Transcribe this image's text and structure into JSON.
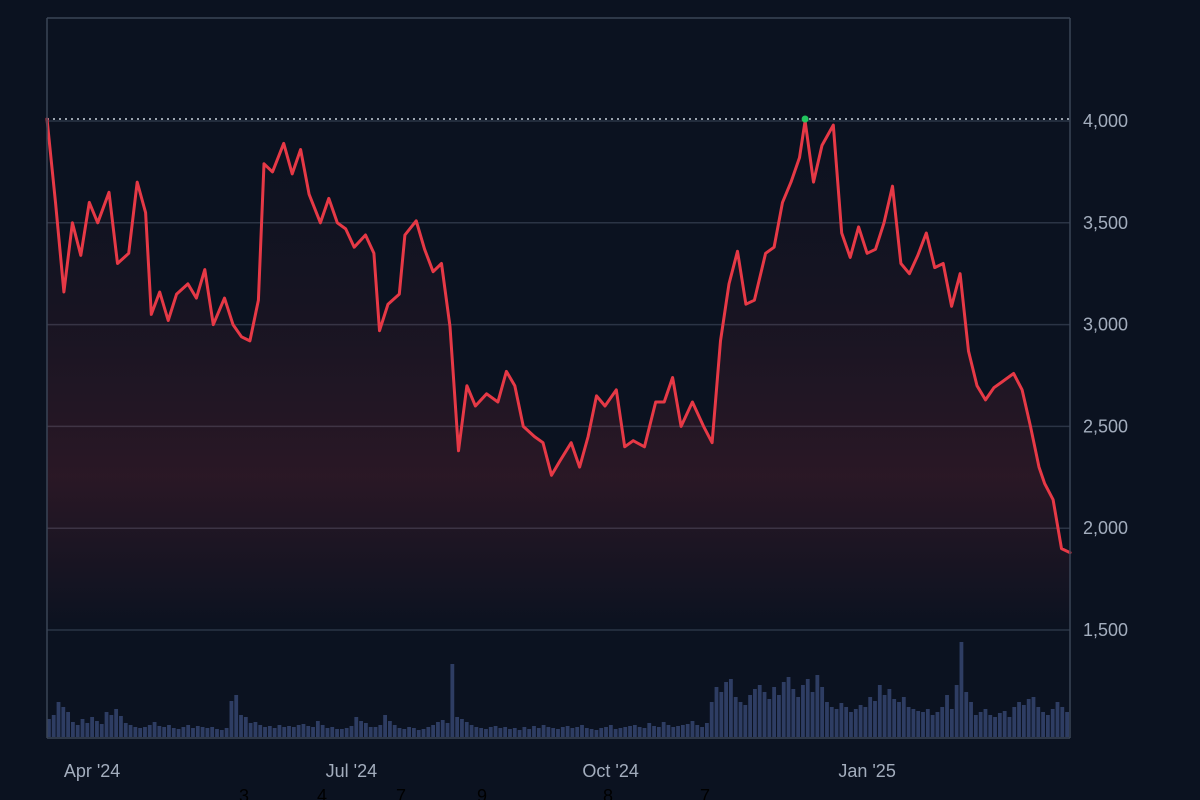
{
  "chart_data": {
    "type": "line",
    "title": "",
    "xlabel": "",
    "ylabel": "",
    "ylim": [
      1000,
      4500
    ],
    "y_ticks": [
      1500,
      2000,
      2500,
      3000,
      3500,
      4000
    ],
    "y_tick_labels": [
      "1,500",
      "2,000",
      "2,500",
      "3,000",
      "3,500",
      "4,000"
    ],
    "x_ticks": [
      "2024-03-28",
      "2024-06-28",
      "2024-09-28",
      "2024-12-28"
    ],
    "x_tick_labels": [
      "Apr '24",
      "Jul '24",
      "Oct '24",
      "Jan '25"
    ],
    "x_range": [
      "2024-03-12",
      "2025-03-10"
    ],
    "grid": true,
    "legend": "none",
    "reference_line": {
      "value": 4010,
      "style": "dotted"
    },
    "extra_labels": [
      "3",
      "4",
      "7",
      "9",
      "8",
      "7"
    ],
    "colors": {
      "price_line": "#e63946",
      "volume": "#2e3d63",
      "grid": "#2b3445",
      "background": "#0b1220",
      "high_marker": "#22c55e"
    },
    "series": [
      {
        "kind": "price",
        "points": [
          [
            "2024-03-12",
            4010
          ],
          [
            "2024-03-15",
            3600
          ],
          [
            "2024-03-18",
            3160
          ],
          [
            "2024-03-21",
            3500
          ],
          [
            "2024-03-24",
            3340
          ],
          [
            "2024-03-27",
            3600
          ],
          [
            "2024-03-30",
            3500
          ],
          [
            "2024-04-03",
            3650
          ],
          [
            "2024-04-06",
            3300
          ],
          [
            "2024-04-10",
            3350
          ],
          [
            "2024-04-13",
            3700
          ],
          [
            "2024-04-16",
            3550
          ],
          [
            "2024-04-18",
            3050
          ],
          [
            "2024-04-21",
            3160
          ],
          [
            "2024-04-24",
            3020
          ],
          [
            "2024-04-27",
            3150
          ],
          [
            "2024-05-01",
            3200
          ],
          [
            "2024-05-04",
            3130
          ],
          [
            "2024-05-07",
            3270
          ],
          [
            "2024-05-10",
            3000
          ],
          [
            "2024-05-14",
            3130
          ],
          [
            "2024-05-17",
            3000
          ],
          [
            "2024-05-20",
            2940
          ],
          [
            "2024-05-23",
            2920
          ],
          [
            "2024-05-26",
            3120
          ],
          [
            "2024-05-28",
            3790
          ],
          [
            "2024-05-31",
            3750
          ],
          [
            "2024-06-04",
            3890
          ],
          [
            "2024-06-07",
            3740
          ],
          [
            "2024-06-10",
            3860
          ],
          [
            "2024-06-13",
            3640
          ],
          [
            "2024-06-17",
            3500
          ],
          [
            "2024-06-20",
            3620
          ],
          [
            "2024-06-23",
            3500
          ],
          [
            "2024-06-26",
            3470
          ],
          [
            "2024-06-29",
            3380
          ],
          [
            "2024-07-03",
            3440
          ],
          [
            "2024-07-06",
            3350
          ],
          [
            "2024-07-08",
            2970
          ],
          [
            "2024-07-11",
            3100
          ],
          [
            "2024-07-15",
            3150
          ],
          [
            "2024-07-17",
            3440
          ],
          [
            "2024-07-21",
            3510
          ],
          [
            "2024-07-24",
            3370
          ],
          [
            "2024-07-27",
            3260
          ],
          [
            "2024-07-30",
            3300
          ],
          [
            "2024-08-02",
            2990
          ],
          [
            "2024-08-05",
            2380
          ],
          [
            "2024-08-08",
            2700
          ],
          [
            "2024-08-11",
            2600
          ],
          [
            "2024-08-15",
            2660
          ],
          [
            "2024-08-19",
            2620
          ],
          [
            "2024-08-22",
            2770
          ],
          [
            "2024-08-25",
            2700
          ],
          [
            "2024-08-28",
            2500
          ],
          [
            "2024-09-01",
            2450
          ],
          [
            "2024-09-04",
            2420
          ],
          [
            "2024-09-07",
            2260
          ],
          [
            "2024-09-10",
            2330
          ],
          [
            "2024-09-14",
            2420
          ],
          [
            "2024-09-17",
            2300
          ],
          [
            "2024-09-20",
            2450
          ],
          [
            "2024-09-23",
            2650
          ],
          [
            "2024-09-26",
            2600
          ],
          [
            "2024-09-30",
            2680
          ],
          [
            "2024-10-03",
            2400
          ],
          [
            "2024-10-06",
            2430
          ],
          [
            "2024-10-10",
            2400
          ],
          [
            "2024-10-14",
            2620
          ],
          [
            "2024-10-17",
            2620
          ],
          [
            "2024-10-20",
            2740
          ],
          [
            "2024-10-23",
            2500
          ],
          [
            "2024-10-27",
            2620
          ],
          [
            "2024-10-31",
            2500
          ],
          [
            "2024-11-03",
            2420
          ],
          [
            "2024-11-06",
            2920
          ],
          [
            "2024-11-09",
            3200
          ],
          [
            "2024-11-12",
            3360
          ],
          [
            "2024-11-15",
            3100
          ],
          [
            "2024-11-18",
            3120
          ],
          [
            "2024-11-22",
            3350
          ],
          [
            "2024-11-25",
            3380
          ],
          [
            "2024-11-28",
            3600
          ],
          [
            "2024-12-01",
            3700
          ],
          [
            "2024-12-04",
            3820
          ],
          [
            "2024-12-06",
            4000
          ],
          [
            "2024-12-09",
            3700
          ],
          [
            "2024-12-12",
            3880
          ],
          [
            "2024-12-16",
            3980
          ],
          [
            "2024-12-19",
            3450
          ],
          [
            "2024-12-22",
            3330
          ],
          [
            "2024-12-25",
            3480
          ],
          [
            "2024-12-28",
            3350
          ],
          [
            "2024-12-31",
            3370
          ],
          [
            "2025-01-03",
            3500
          ],
          [
            "2025-01-06",
            3680
          ],
          [
            "2025-01-09",
            3300
          ],
          [
            "2025-01-12",
            3250
          ],
          [
            "2025-01-15",
            3340
          ],
          [
            "2025-01-18",
            3450
          ],
          [
            "2025-01-21",
            3280
          ],
          [
            "2025-01-24",
            3300
          ],
          [
            "2025-01-27",
            3090
          ],
          [
            "2025-01-30",
            3250
          ],
          [
            "2025-02-02",
            2870
          ],
          [
            "2025-02-05",
            2700
          ],
          [
            "2025-02-08",
            2630
          ],
          [
            "2025-02-11",
            2690
          ],
          [
            "2025-02-14",
            2720
          ],
          [
            "2025-02-18",
            2760
          ],
          [
            "2025-02-21",
            2680
          ],
          [
            "2025-02-24",
            2500
          ],
          [
            "2025-02-27",
            2300
          ],
          [
            "2025-03-01",
            2220
          ],
          [
            "2025-03-04",
            2140
          ],
          [
            "2025-03-07",
            1900
          ],
          [
            "2025-03-10",
            1880
          ]
        ]
      },
      {
        "kind": "volume",
        "values_relative": [
          0.18,
          0.22,
          0.35,
          0.3,
          0.25,
          0.15,
          0.12,
          0.18,
          0.14,
          0.2,
          0.16,
          0.13,
          0.25,
          0.22,
          0.28,
          0.21,
          0.14,
          0.12,
          0.1,
          0.09,
          0.1,
          0.12,
          0.15,
          0.11,
          0.1,
          0.12,
          0.09,
          0.08,
          0.1,
          0.12,
          0.09,
          0.11,
          0.1,
          0.09,
          0.1,
          0.08,
          0.07,
          0.09,
          0.36,
          0.42,
          0.22,
          0.2,
          0.14,
          0.15,
          0.12,
          0.1,
          0.11,
          0.09,
          0.12,
          0.1,
          0.11,
          0.1,
          0.12,
          0.13,
          0.11,
          0.1,
          0.16,
          0.12,
          0.09,
          0.1,
          0.08,
          0.08,
          0.09,
          0.11,
          0.2,
          0.16,
          0.14,
          0.1,
          0.1,
          0.12,
          0.22,
          0.16,
          0.12,
          0.09,
          0.08,
          0.1,
          0.09,
          0.07,
          0.08,
          0.1,
          0.12,
          0.15,
          0.17,
          0.14,
          0.73,
          0.2,
          0.18,
          0.15,
          0.12,
          0.1,
          0.09,
          0.08,
          0.1,
          0.11,
          0.09,
          0.1,
          0.08,
          0.09,
          0.07,
          0.1,
          0.08,
          0.11,
          0.09,
          0.12,
          0.1,
          0.09,
          0.08,
          0.1,
          0.11,
          0.09,
          0.1,
          0.12,
          0.09,
          0.08,
          0.07,
          0.09,
          0.1,
          0.12,
          0.08,
          0.09,
          0.1,
          0.11,
          0.12,
          0.1,
          0.09,
          0.14,
          0.11,
          0.1,
          0.15,
          0.12,
          0.1,
          0.11,
          0.12,
          0.13,
          0.16,
          0.12,
          0.1,
          0.14,
          0.35,
          0.5,
          0.45,
          0.55,
          0.58,
          0.4,
          0.35,
          0.32,
          0.42,
          0.48,
          0.52,
          0.45,
          0.38,
          0.5,
          0.42,
          0.55,
          0.6,
          0.48,
          0.4,
          0.52,
          0.58,
          0.45,
          0.62,
          0.5,
          0.35,
          0.3,
          0.28,
          0.34,
          0.3,
          0.25,
          0.28,
          0.32,
          0.3,
          0.4,
          0.36,
          0.52,
          0.42,
          0.48,
          0.38,
          0.35,
          0.4,
          0.3,
          0.28,
          0.26,
          0.25,
          0.28,
          0.22,
          0.25,
          0.3,
          0.42,
          0.28,
          0.52,
          0.95,
          0.45,
          0.35,
          0.22,
          0.25,
          0.28,
          0.22,
          0.2,
          0.24,
          0.26,
          0.2,
          0.3,
          0.35,
          0.32,
          0.38,
          0.4,
          0.3,
          0.25,
          0.22,
          0.28,
          0.35,
          0.3,
          0.25
        ]
      }
    ]
  }
}
